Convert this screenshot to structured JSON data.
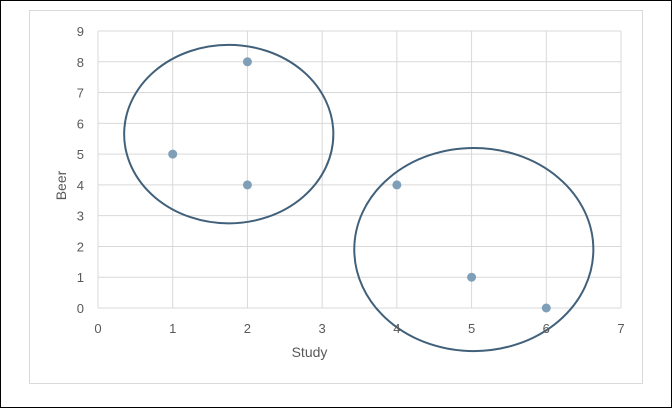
{
  "chart_data": {
    "type": "scatter",
    "title": "",
    "xlabel": "Study",
    "ylabel": "Beer",
    "xlim": [
      0,
      7
    ],
    "ylim": [
      0,
      9
    ],
    "xticks": [
      "0",
      "1",
      "2",
      "3",
      "4",
      "5",
      "6",
      "7"
    ],
    "yticks": [
      "0",
      "1",
      "2",
      "3",
      "4",
      "5",
      "6",
      "7",
      "8",
      "9"
    ],
    "grid": true,
    "legend": "none",
    "series": [
      {
        "points": [
          {
            "x": 1,
            "y": 5
          },
          {
            "x": 2,
            "y": 8
          },
          {
            "x": 2,
            "y": 4
          },
          {
            "x": 4,
            "y": 4
          },
          {
            "x": 5,
            "y": 1
          },
          {
            "x": 6,
            "y": 0
          }
        ]
      }
    ],
    "annotations": [
      {
        "type": "ellipse",
        "cx": 1.75,
        "cy": 5.65,
        "rx": 1.4,
        "ry": 2.9
      },
      {
        "type": "ellipse",
        "cx": 5.03,
        "cy": 1.9,
        "rx": 1.6,
        "ry": 3.3
      }
    ],
    "colors": {
      "marker": "#7f9fb8",
      "ellipse": "#41607a",
      "grid": "#d9d9d9",
      "text": "#595959"
    }
  }
}
